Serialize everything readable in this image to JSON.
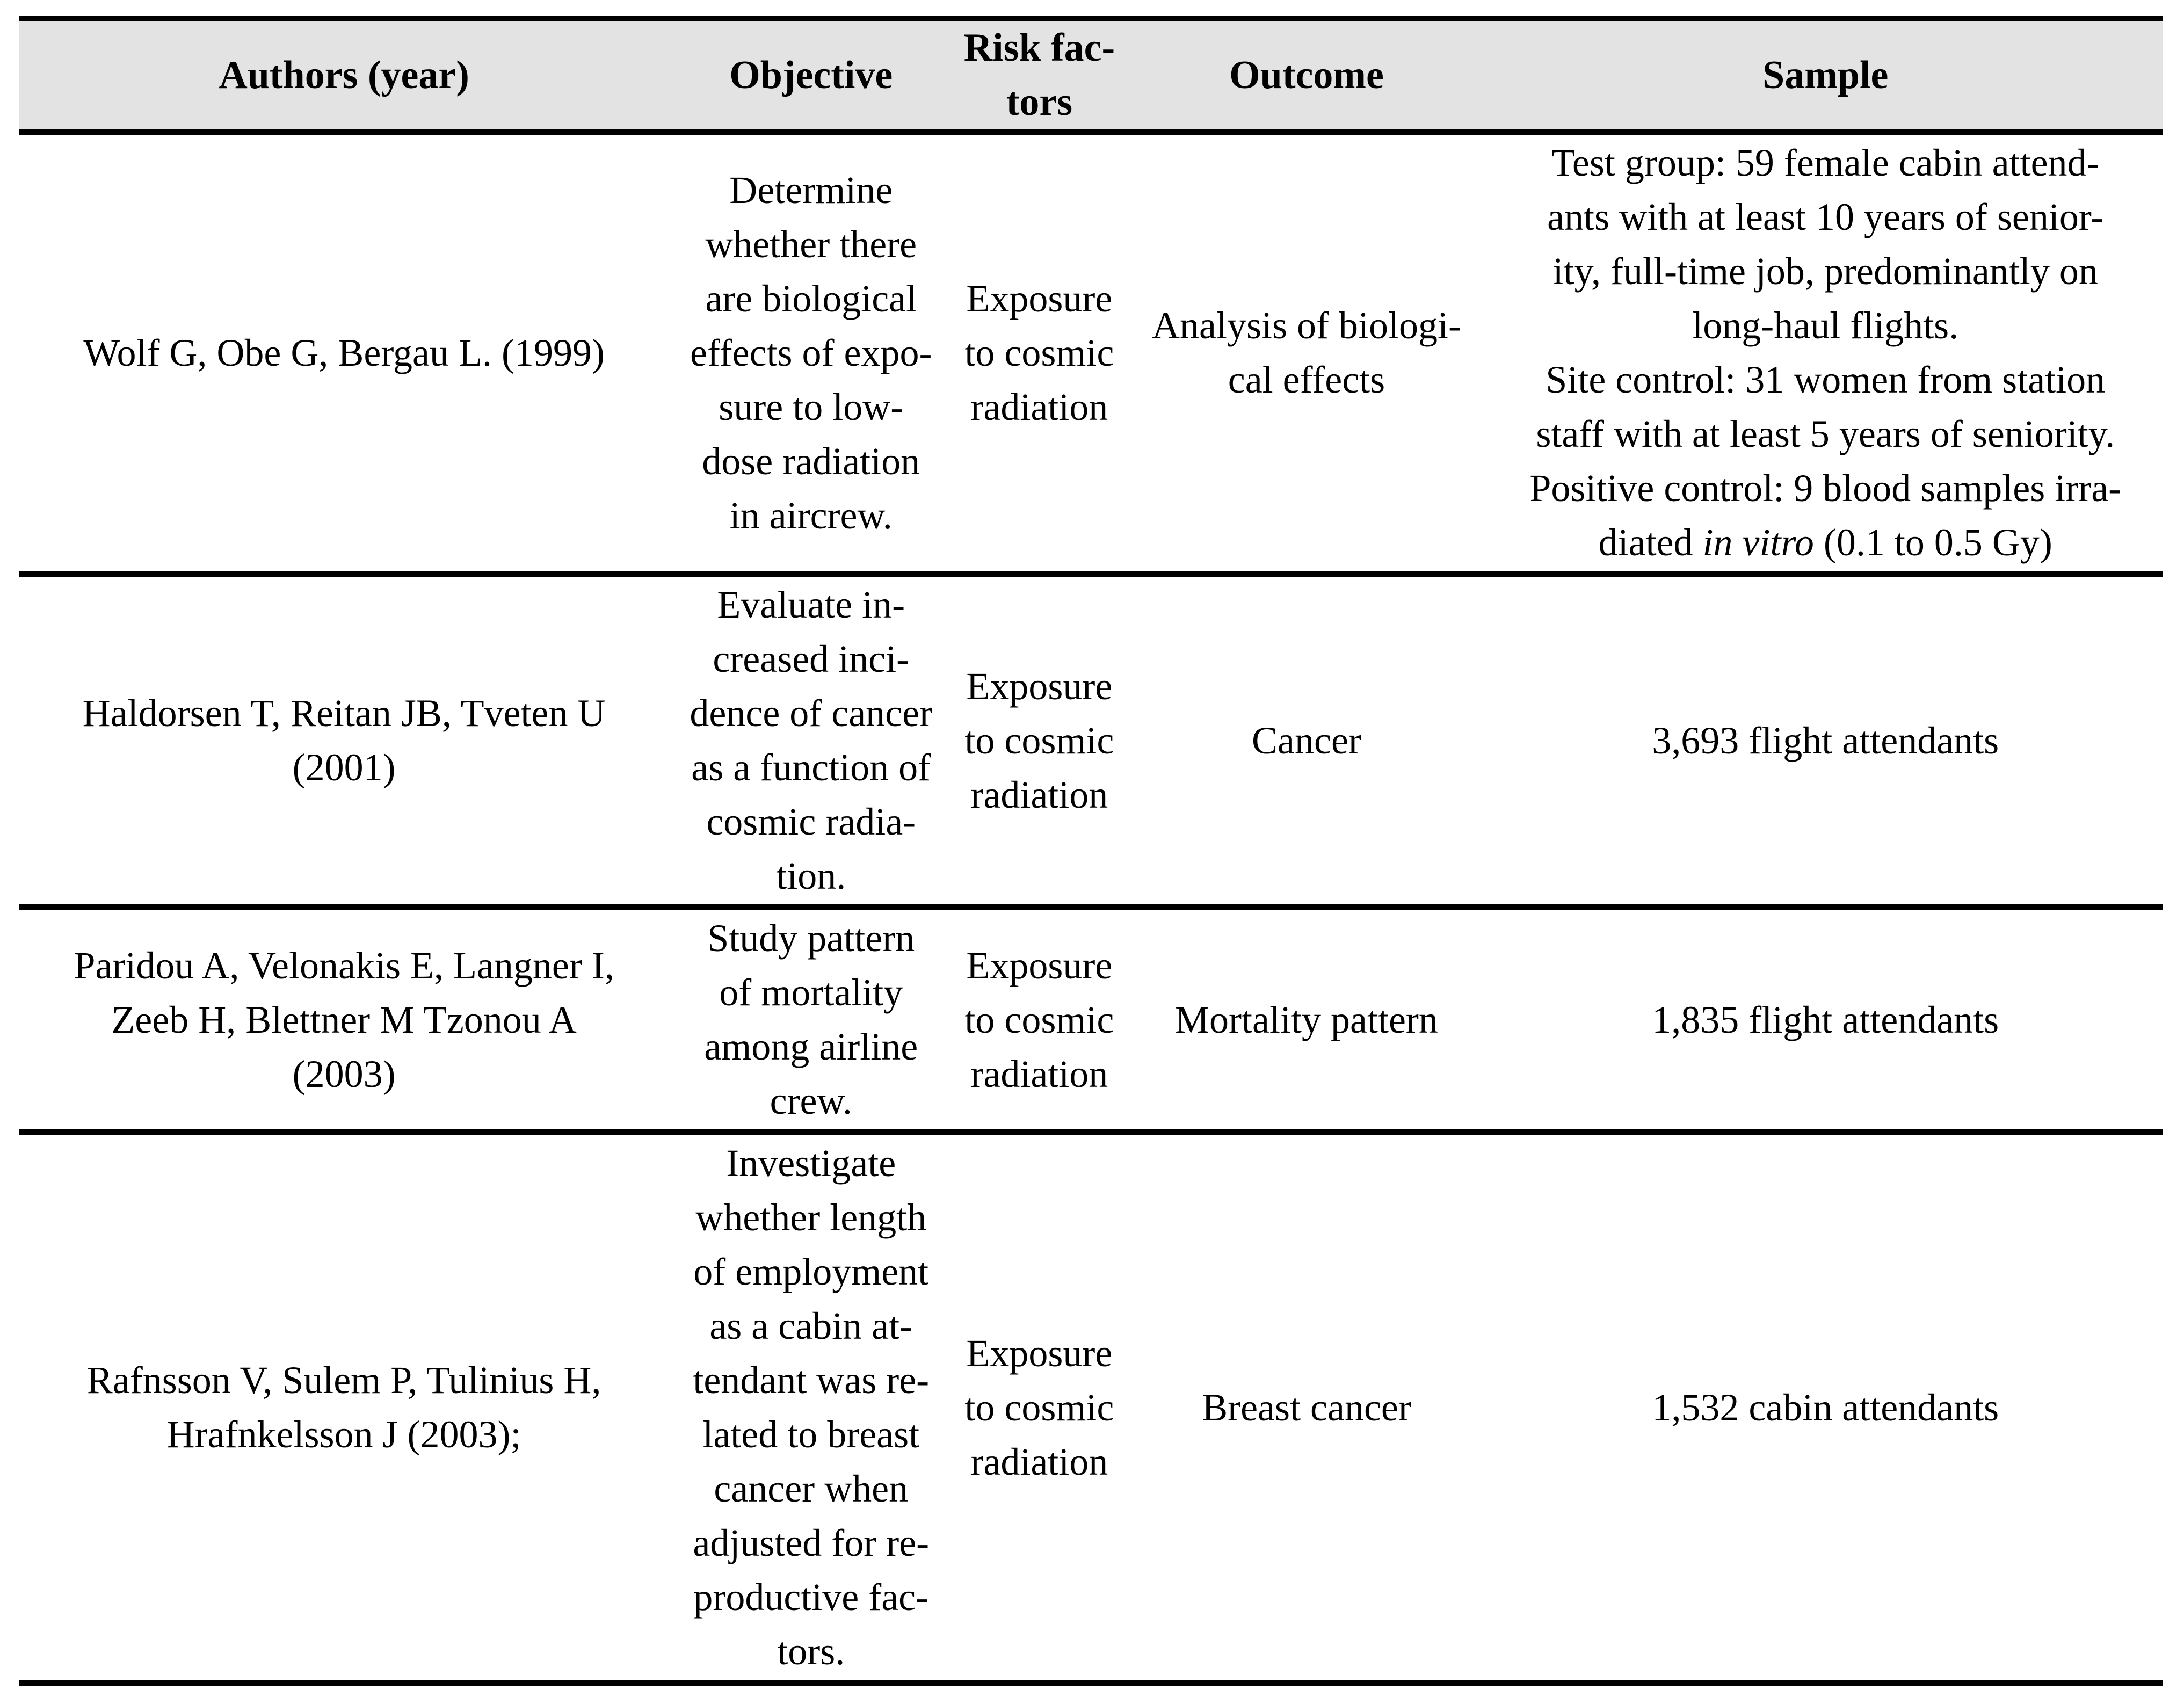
{
  "table": {
    "colors": {
      "header_bg": "#e3e3e3",
      "border": "#000000",
      "text": "#000000"
    },
    "headers": {
      "authors": "Authors (year)",
      "objective": "Objective",
      "risk_factors": "Risk fac-\ntors",
      "outcome": "Outcome",
      "sample": "Sample"
    },
    "rows": [
      {
        "authors": "Wolf G, Obe G, Bergau L. (1999)",
        "objective": "Determine\nwhether there\nare biological\neffects of expo-\nsure to low-\ndose radiation\nin aircrew.",
        "risk_factors": "Exposure\nto cosmic\nradiation",
        "outcome": "Analysis of biologi-\ncal effects",
        "sample_before_italic": "Test group: 59 female cabin attend-\nants with at least 10 years of senior-\nity, full-time job, predominantly on\nlong-haul flights.\nSite control: 31 women from station\nstaff with at least 5 years of seniority.\nPositive control: 9 blood samples irra-\ndiated ",
        "sample_italic": "in vitro",
        "sample_after_italic": " (0.1 to 0.5 Gy)"
      },
      {
        "authors": "Haldorsen T, Reitan JB, Tveten U\n(2001)",
        "objective": "Evaluate in-\ncreased inci-\ndence of cancer\nas a function of\ncosmic radia-\ntion.",
        "risk_factors": "Exposure\nto cosmic\nradiation",
        "outcome": "Cancer",
        "sample": "3,693 flight attendants"
      },
      {
        "authors": "Paridou A, Velonakis E, Langner I,\nZeeb H, Blettner M Tzonou A\n(2003)",
        "objective": "Study pattern\nof mortality\namong airline\ncrew.",
        "risk_factors": "Exposure\nto cosmic\nradiation",
        "outcome": "Mortality pattern",
        "sample": "1,835 flight attendants"
      },
      {
        "authors": "Rafnsson V, Sulem P, Tulinius H,\nHrafnkelsson J (2003);",
        "objective": "Investigate\nwhether length\nof employment\nas a cabin at-\ntendant was re-\nlated to breast\ncancer when\nadjusted for re-\nproductive fac-\ntors.",
        "risk_factors": "Exposure\nto cosmic\nradiation",
        "outcome": "Breast cancer",
        "sample": "1,532 cabin attendants"
      }
    ]
  }
}
